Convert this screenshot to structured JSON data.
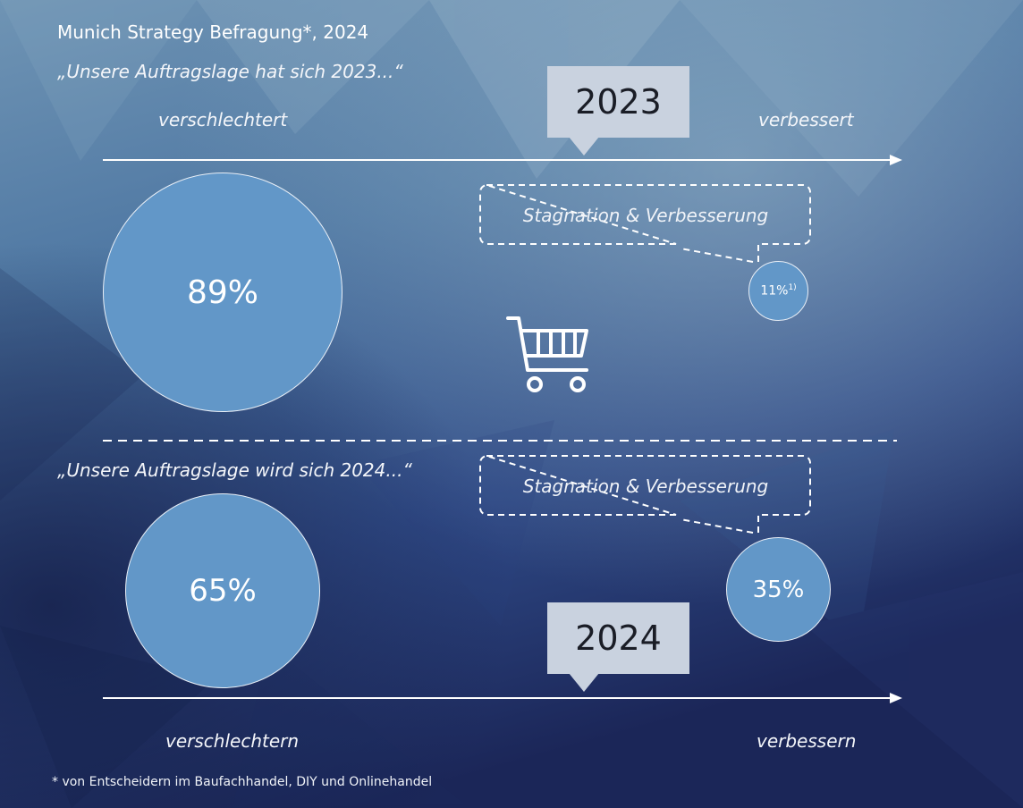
{
  "header": {
    "title": "Munich Strategy Befragung*, 2024"
  },
  "section_2023": {
    "question": "„Unsere Auftragslage hat sich 2023...“",
    "year_label": "2023",
    "left_label": "verschlechtert",
    "right_label": "verbessert",
    "worse_value": "89%",
    "callout": "Stagnation & Verbesserung",
    "better_value": "11%",
    "better_footnote_mark": "1)"
  },
  "section_2024": {
    "question": "„Unsere Auftragslage wird sich 2024...“",
    "year_label": "2024",
    "left_label": "verschlechtern",
    "right_label": "verbessern",
    "worse_value": "65%",
    "callout": "Stagnation & Verbesserung",
    "better_value": "35%"
  },
  "footnote": "* von Entscheidern im Baufachhandel, DIY und Onlinehandel",
  "icons": {
    "center": "shopping-cart-icon"
  },
  "colors": {
    "circle_fill": "#6297c8",
    "year_box": "#c9d2df",
    "background_top": "#7a9fbb",
    "background_bottom": "#1c2856"
  }
}
